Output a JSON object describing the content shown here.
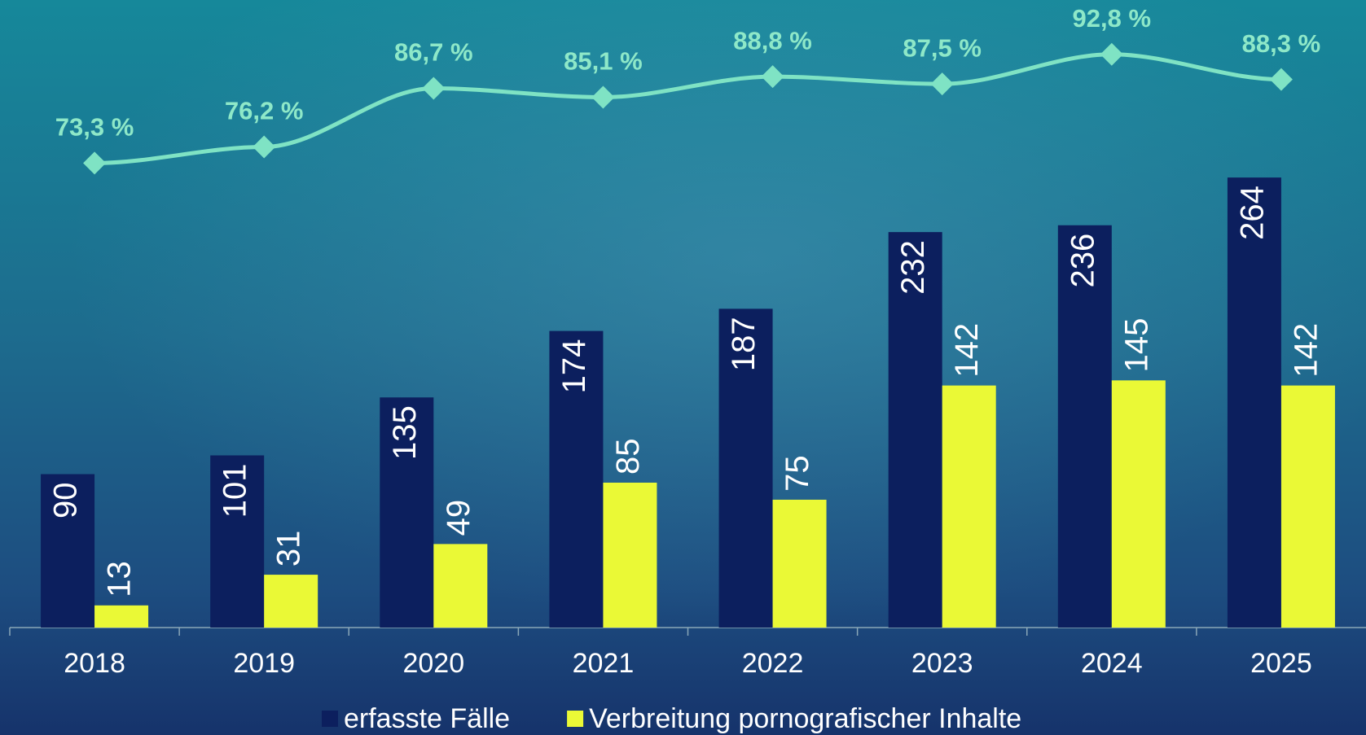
{
  "chart_data": {
    "type": "bar",
    "categories": [
      "2018",
      "2019",
      "2020",
      "2021",
      "2022",
      "2023",
      "2024",
      "2025"
    ],
    "series": [
      {
        "name": "erfasste Fälle",
        "color": "#0c1f5e",
        "values": [
          90,
          101,
          135,
          174,
          187,
          232,
          236,
          264
        ]
      },
      {
        "name": "Verbreitung pornografischer Inhalte",
        "color": "#eaf936",
        "values": [
          13,
          31,
          49,
          85,
          75,
          142,
          145,
          142
        ]
      },
      {
        "type": "line",
        "axis": "y2",
        "color": "#7fe3c4",
        "values": [
          73.3,
          76.2,
          86.7,
          85.1,
          88.8,
          87.5,
          92.8,
          88.3
        ],
        "value_labels": [
          "73,3 %",
          "76,2 %",
          "86,7 %",
          "85,1 %",
          "88,8 %",
          "87,5 %",
          "92,8 %",
          "88,3 %"
        ]
      }
    ],
    "ylim": [
      0,
      350
    ],
    "y2lim": [
      -10,
      97
    ],
    "legend": "bottom"
  }
}
